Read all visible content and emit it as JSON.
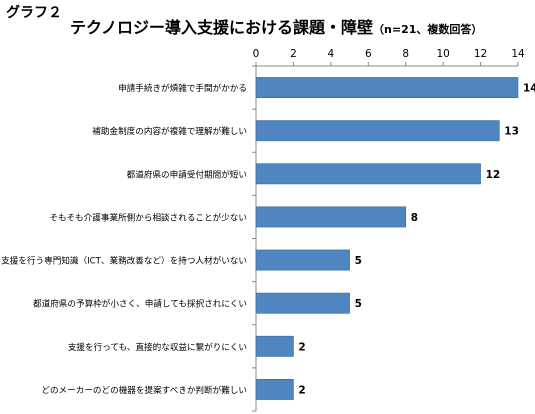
{
  "figure_label": "グラフ２",
  "title": "テクノロジー導入支援における課題・障壁",
  "subtitle": "（n=21、複数回答）",
  "chart_data": {
    "type": "bar",
    "orientation": "horizontal",
    "categories": [
      "申請手続きが煩雑で手間がかかる",
      "補助金制度の内容が複雑で理解が難しい",
      "都道府県の申請受付期間が短い",
      "そもそも介護事業所側から相談されることが少ない",
      "支援を行う専門知識（ICT、業務改善など）を持つ人材がいない",
      "都道府県の予算枠が小さく、申請しても採択されにくい",
      "支援を行っても、直接的な収益に繋がりにくい",
      "どのメーカーのどの機器を提案すべきか判断が難しい"
    ],
    "values": [
      14,
      13,
      12,
      8,
      5,
      5,
      2,
      2
    ],
    "xlim": [
      0,
      14
    ],
    "xticks": [
      0,
      2,
      4,
      6,
      8,
      10,
      12,
      14
    ],
    "xaxis_position": "top",
    "grid": false,
    "data_labels": true,
    "bar_color": "#4f86c0",
    "bar_edge_color": "#3a6a9c"
  }
}
